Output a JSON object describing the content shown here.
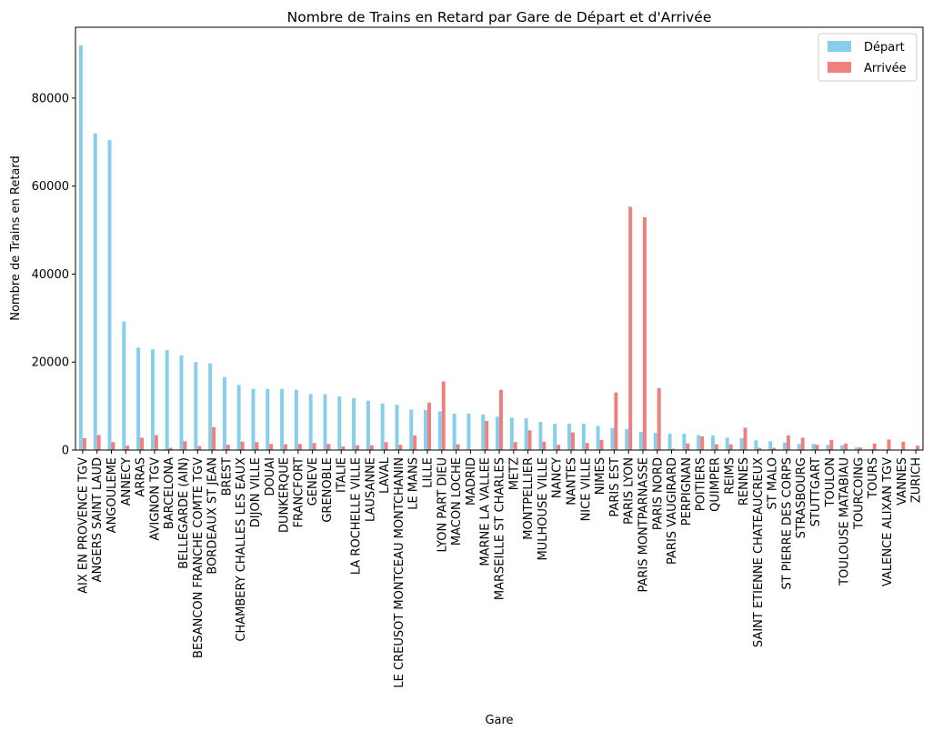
{
  "chart_data": {
    "type": "bar",
    "title": "Nombre de Trains en Retard par Gare de Départ et d'Arrivée",
    "xlabel": "Gare",
    "ylabel": "Nombre de Trains en Retard",
    "ylim": [
      0,
      96100
    ],
    "yticks": [
      0,
      20000,
      40000,
      60000,
      80000
    ],
    "legend_position": "top-right",
    "categories": [
      "AIX EN PROVENCE TGV",
      "ANGERS SAINT LAUD",
      "ANGOULEME",
      "ANNECY",
      "ARRAS",
      "AVIGNON TGV",
      "BARCELONA",
      "BELLEGARDE (AIN)",
      "BESANCON FRANCHE COMTE TGV",
      "BORDEAUX ST JEAN",
      "BREST",
      "CHAMBERY CHALLES LES EAUX",
      "DIJON VILLE",
      "DOUAI",
      "DUNKERQUE",
      "FRANCFORT",
      "GENEVE",
      "GRENOBLE",
      "ITALIE",
      "LA ROCHELLE VILLE",
      "LAUSANNE",
      "LAVAL",
      "LE CREUSOT MONTCEAU MONTCHANIN",
      "LE MANS",
      "LILLE",
      "LYON PART DIEU",
      "MACON LOCHE",
      "MADRID",
      "MARNE LA VALLEE",
      "MARSEILLE ST CHARLES",
      "METZ",
      "MONTPELLIER",
      "MULHOUSE VILLE",
      "NANCY",
      "NANTES",
      "NICE VILLE",
      "NIMES",
      "PARIS EST",
      "PARIS LYON",
      "PARIS MONTPARNASSE",
      "PARIS NORD",
      "PARIS VAUGIRARD",
      "PERPIGNAN",
      "POITIERS",
      "QUIMPER",
      "REIMS",
      "RENNES",
      "SAINT ETIENNE CHATEAUCREUX",
      "ST MALO",
      "ST PIERRE DES CORPS",
      "STRASBOURG",
      "STUTTGART",
      "TOULON",
      "TOULOUSE MATABIAU",
      "TOURCOING",
      "TOURS",
      "VALENCE ALIXAN TGV",
      "VANNES",
      "ZURICH"
    ],
    "series": [
      {
        "name": "Départ",
        "color": "#87CEEB",
        "values": [
          92000,
          72000,
          70500,
          29200,
          23300,
          22900,
          22700,
          21500,
          20000,
          19700,
          16600,
          14800,
          13900,
          13900,
          13900,
          13700,
          12700,
          12700,
          12200,
          11800,
          11200,
          10600,
          10300,
          9200,
          9100,
          8800,
          8300,
          8300,
          8100,
          7600,
          7400,
          7200,
          6400,
          6000,
          6000,
          6000,
          5500,
          5000,
          4800,
          4100,
          3900,
          3700,
          3700,
          3400,
          3300,
          2800,
          2700,
          2200,
          2000,
          1700,
          1400,
          1400,
          1200,
          1100,
          600,
          200,
          100,
          100,
          100
        ]
      },
      {
        "name": "Arrivée",
        "color": "#F08080",
        "values": [
          2700,
          3400,
          1800,
          1000,
          2800,
          3400,
          500,
          2000,
          900,
          5200,
          1200,
          1900,
          1800,
          1400,
          1300,
          1400,
          1600,
          1400,
          800,
          1100,
          1100,
          1800,
          1200,
          3300,
          10800,
          15600,
          1300,
          0,
          6600,
          13700,
          1800,
          4500,
          1900,
          1200,
          4000,
          1600,
          2300,
          13100,
          55300,
          52900,
          14100,
          300,
          1500,
          3100,
          1300,
          1300,
          5100,
          500,
          500,
          3300,
          2800,
          1200,
          2300,
          1500,
          600,
          1500,
          2400,
          1900,
          1000
        ]
      }
    ]
  }
}
